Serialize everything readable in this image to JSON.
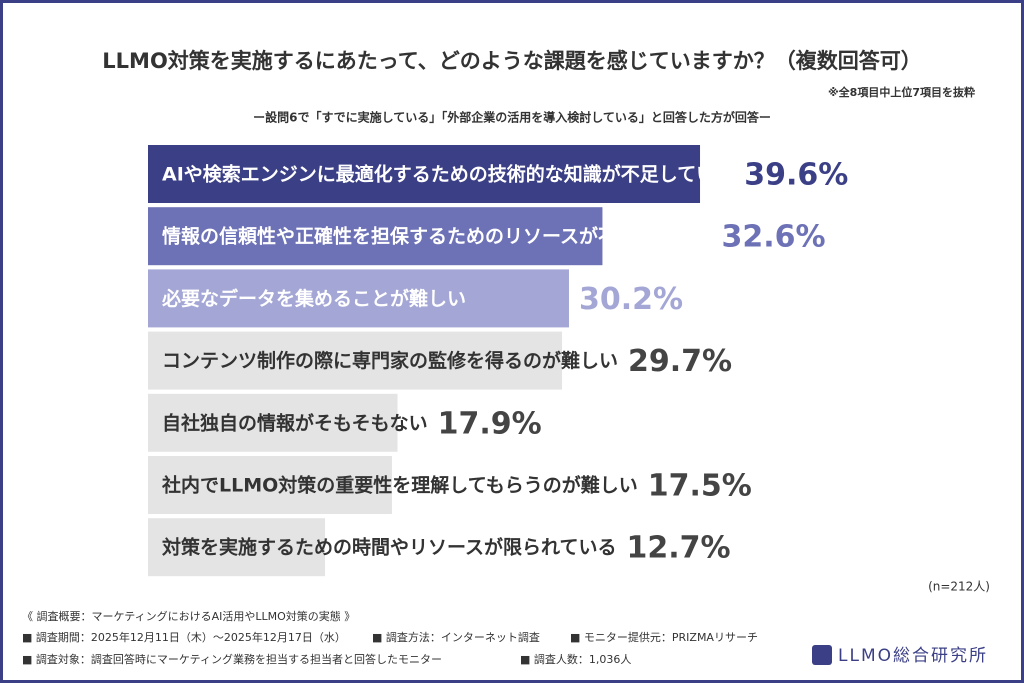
{
  "chart_data": {
    "type": "bar",
    "title": "LLMO対策を実施するにあたって、どのような課題を感じていますか？（複数回答可）",
    "note": "※全8項目中上位7項目を抜粋",
    "subtitle": "ー設問6で「すでに実施している」「外部企業の活用を導入検討している」と回答した方が回答ー",
    "categories": [
      "AIや検索エンジンに最適化するための技術的な知識が不足している",
      "情報の信頼性や正確性を担保するためのリソースが不足している",
      "必要なデータを集めることが難しい",
      "コンテンツ制作の際に専門家の監修を得るのが難しい",
      "自社独自の情報がそもそもない",
      "社内でLLMO対策の重要性を理解してもらうのが難しい",
      "対策を実施するための時間やリソースが限られている"
    ],
    "values": [
      39.6,
      32.6,
      30.2,
      29.7,
      17.9,
      17.5,
      12.7
    ],
    "value_labels": [
      "39.6%",
      "32.6%",
      "30.2%",
      "29.7%",
      "17.9%",
      "17.5%",
      "12.7%"
    ],
    "colors": [
      "#3b3f86",
      "#6d71b6",
      "#a4a7d5",
      "#e4e4e4",
      "#e4e4e4",
      "#e4e4e4",
      "#e4e4e4"
    ],
    "value_label_colors": [
      "#3b3f86",
      "#6d71b6",
      "#a4a7d5",
      "#444444",
      "#444444",
      "#444444",
      "#444444"
    ],
    "sample": "(n=212人)"
  },
  "footer": {
    "heading": "《 調査概要：マーケティングにおけるAI活用やLLMO対策の実態 》",
    "period": "■ 調査期間：2025年12月11日（木）～2025年12月17日（水）",
    "method": "■ 調査方法：インターネット調査",
    "provider": "■ モニター提供元：PRIZMAリサーチ",
    "target": "■ 調査対象：調査回答時にマーケティング業務を担当する担当者と回答したモニター",
    "count": "■ 調査人数：1,036人",
    "logo": "LLMO総合研究所"
  }
}
